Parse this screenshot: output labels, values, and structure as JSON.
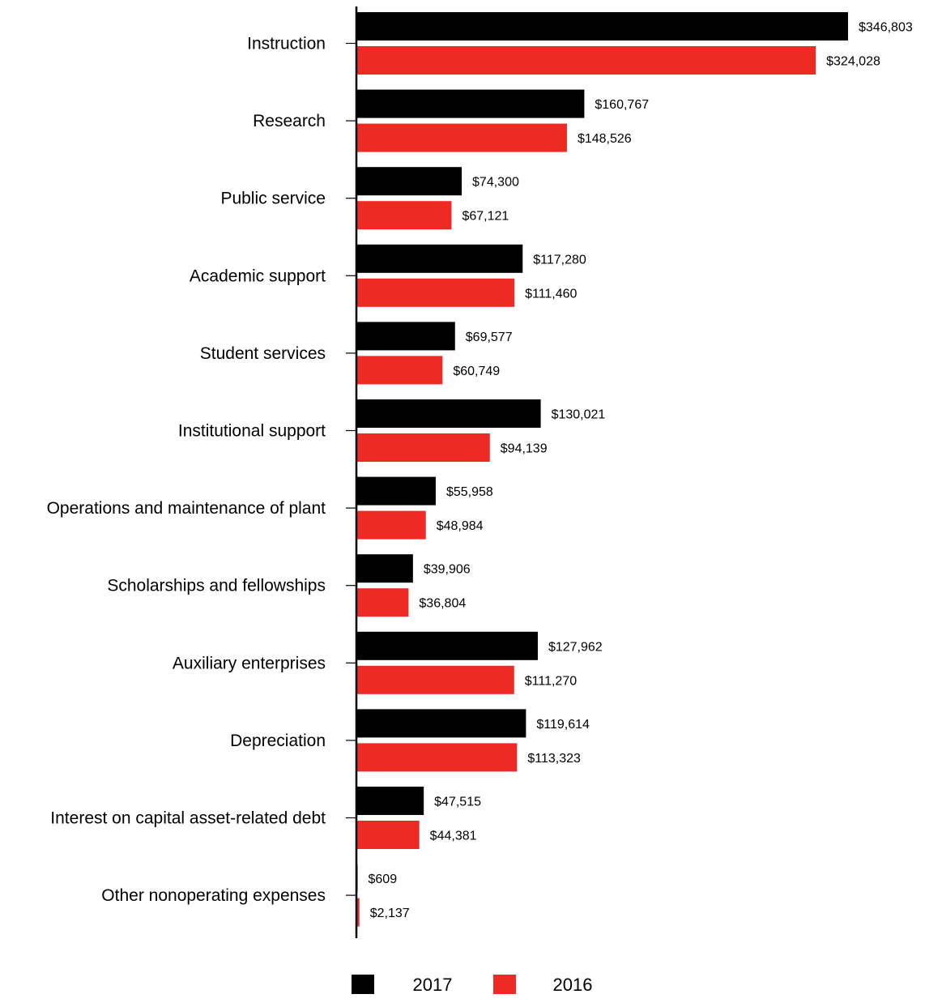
{
  "chart_data": {
    "type": "bar",
    "orientation": "horizontal",
    "categories": [
      "Instruction",
      "Research",
      "Public service",
      "Academic support",
      "Student services",
      "Institutional support",
      "Operations and maintenance of plant",
      "Scholarships and fellowships",
      "Auxiliary enterprises",
      "Depreciation",
      "Interest on capital asset-related debt",
      "Other nonoperating expenses"
    ],
    "series": [
      {
        "name": "2017",
        "color": "#000000",
        "values": [
          346803,
          160767,
          74300,
          117280,
          69577,
          130021,
          55958,
          39906,
          127962,
          119614,
          47515,
          609
        ],
        "labels": [
          "$346,803",
          "$160,767",
          "$74,300",
          "$117,280",
          "$69,577",
          "$130,021",
          "$55,958",
          "$39,906",
          "$127,962",
          "$119,614",
          "$47,515",
          "$609"
        ]
      },
      {
        "name": "2016",
        "color": "#ee2a24",
        "values": [
          324028,
          148526,
          67121,
          111460,
          60749,
          94139,
          48984,
          36804,
          111270,
          113323,
          44381,
          2137
        ],
        "labels": [
          "$324,028",
          "$148,526",
          "$67,121",
          "$111,460",
          "$60,749",
          "$94,139",
          "$48,984",
          "$36,804",
          "$111,270",
          "$113,323",
          "$44,381",
          "$2,137"
        ]
      }
    ],
    "xlim": [
      0,
      346803
    ],
    "grid": false,
    "legend": "bottom-center"
  }
}
